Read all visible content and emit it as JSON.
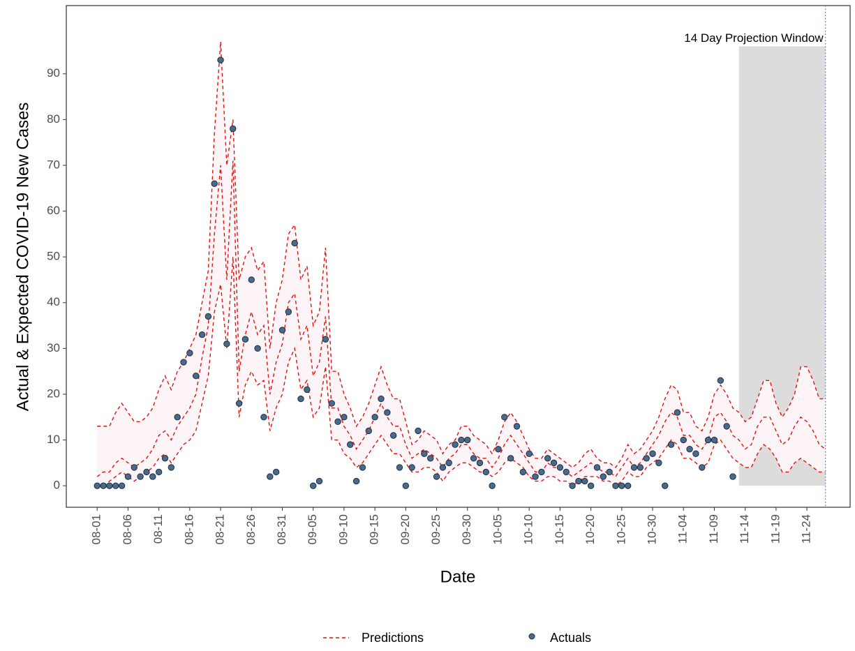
{
  "chart_data": {
    "type": "line",
    "x_label": "Date",
    "y_label": "Actual & Expected COVID-19 New Cases",
    "xlim": [
      "07-27",
      "12-01"
    ],
    "xticks": [
      "08-01",
      "08-06",
      "08-11",
      "08-16",
      "08-21",
      "08-26",
      "08-31",
      "09-05",
      "09-10",
      "09-15",
      "09-20",
      "09-25",
      "09-30",
      "10-05",
      "10-10",
      "10-15",
      "10-20",
      "10-25",
      "10-30",
      "11-04",
      "11-09",
      "11-14",
      "11-19",
      "11-24"
    ],
    "ylim": [
      -4.7,
      104.9
    ],
    "yticks": [
      0,
      10,
      20,
      30,
      40,
      50,
      60,
      70,
      80,
      90
    ],
    "projection_window": {
      "label": "14 Day Projection Window",
      "start": "11-13",
      "end": "11-27",
      "bottom": 0,
      "top": 96,
      "color": "#dcdcdc"
    },
    "vline": "11-27",
    "series": [
      {
        "name": "Predictions",
        "color": "#e3120b",
        "band_color": "#fcf4f7",
        "x": [
          "08-01",
          "08-02",
          "08-03",
          "08-04",
          "08-05",
          "08-06",
          "08-07",
          "08-08",
          "08-09",
          "08-10",
          "08-11",
          "08-12",
          "08-13",
          "08-14",
          "08-15",
          "08-16",
          "08-17",
          "08-18",
          "08-19",
          "08-20",
          "08-21",
          "08-22",
          "08-23",
          "08-24",
          "08-25",
          "08-26",
          "08-27",
          "08-28",
          "08-29",
          "08-30",
          "08-31",
          "09-01",
          "09-02",
          "09-03",
          "09-04",
          "09-05",
          "09-06",
          "09-07",
          "09-08",
          "09-09",
          "09-10",
          "09-11",
          "09-12",
          "09-13",
          "09-14",
          "09-15",
          "09-16",
          "09-17",
          "09-18",
          "09-19",
          "09-20",
          "09-21",
          "09-22",
          "09-23",
          "09-24",
          "09-25",
          "09-26",
          "09-27",
          "09-28",
          "09-29",
          "09-30",
          "10-01",
          "10-02",
          "10-03",
          "10-04",
          "10-05",
          "10-06",
          "10-07",
          "10-08",
          "10-09",
          "10-10",
          "10-11",
          "10-12",
          "10-13",
          "10-14",
          "10-15",
          "10-16",
          "10-17",
          "10-18",
          "10-19",
          "10-20",
          "10-21",
          "10-22",
          "10-23",
          "10-24",
          "10-25",
          "10-26",
          "10-27",
          "10-28",
          "10-29",
          "10-30",
          "10-31",
          "11-01",
          "11-02",
          "11-03",
          "11-04",
          "11-05",
          "11-06",
          "11-07",
          "11-08",
          "11-09",
          "11-10",
          "11-11",
          "11-12",
          "11-13",
          "11-14",
          "11-15",
          "11-16",
          "11-17",
          "11-18",
          "11-19",
          "11-20",
          "11-21",
          "11-22",
          "11-23",
          "11-24",
          "11-25",
          "11-26",
          "11-27"
        ],
        "upper": [
          13,
          13,
          13,
          16,
          18,
          16,
          14,
          14,
          15,
          17,
          21,
          24,
          21,
          25,
          27,
          30,
          33,
          40,
          47,
          77,
          97,
          70,
          80,
          45,
          50,
          52,
          47,
          49,
          30,
          40,
          45,
          55,
          57,
          45,
          48,
          35,
          38,
          52,
          25,
          25,
          20,
          17,
          13,
          15,
          18,
          22,
          26,
          22,
          19,
          19,
          14,
          9,
          10,
          12,
          11,
          10,
          7,
          9,
          10,
          13,
          13,
          11,
          10,
          9,
          7,
          10,
          14,
          16,
          14,
          11,
          8,
          6,
          6,
          8,
          7,
          6,
          5,
          4,
          5,
          7,
          8,
          6,
          5,
          5,
          4,
          6,
          9,
          7,
          8,
          10,
          12,
          15,
          19,
          22,
          21,
          16,
          16,
          13,
          12,
          15,
          20,
          22,
          20,
          17,
          16,
          14,
          15,
          19,
          23,
          23,
          18,
          15,
          17,
          20,
          26,
          26,
          23,
          19,
          19
        ],
        "values": [
          2,
          3,
          3,
          5,
          6,
          5,
          4,
          5,
          6,
          8,
          11,
          12,
          10,
          13,
          15,
          17,
          20,
          28,
          35,
          55,
          70,
          45,
          71,
          25,
          33,
          38,
          33,
          35,
          20,
          27,
          31,
          40,
          42,
          32,
          35,
          24,
          27,
          37,
          17,
          17,
          13,
          11,
          8,
          10,
          12,
          15,
          18,
          15,
          13,
          13,
          9,
          6,
          7,
          8,
          7,
          6,
          4,
          6,
          7,
          9,
          9,
          7,
          6,
          6,
          4,
          6,
          9,
          11,
          9,
          7,
          5,
          3,
          3,
          5,
          4,
          4,
          3,
          2,
          3,
          4,
          5,
          4,
          3,
          3,
          2,
          4,
          6,
          4,
          5,
          7,
          9,
          11,
          14,
          16,
          15,
          11,
          11,
          9,
          8,
          10,
          15,
          16,
          14,
          11,
          10,
          8,
          9,
          13,
          15,
          15,
          12,
          9,
          10,
          13,
          15,
          14,
          12,
          9,
          8
        ],
        "lower": [
          0,
          0,
          1,
          2,
          3,
          2,
          1,
          2,
          3,
          4,
          6,
          7,
          5,
          7,
          9,
          10,
          12,
          18,
          24,
          38,
          44,
          30,
          50,
          15,
          22,
          25,
          22,
          23,
          12,
          17,
          20,
          27,
          30,
          21,
          23,
          15,
          17,
          26,
          10,
          10,
          7,
          6,
          4,
          5,
          7,
          9,
          11,
          9,
          7,
          7,
          5,
          3,
          3,
          4,
          4,
          3,
          1,
          3,
          4,
          5,
          5,
          4,
          3,
          3,
          2,
          3,
          5,
          6,
          5,
          4,
          2,
          1,
          1,
          2,
          2,
          1,
          1,
          0,
          1,
          2,
          2,
          2,
          1,
          1,
          0,
          1,
          3,
          2,
          2,
          4,
          5,
          6,
          8,
          10,
          9,
          6,
          6,
          5,
          4,
          5,
          9,
          10,
          8,
          6,
          5,
          4,
          4,
          7,
          9,
          8,
          6,
          3,
          3,
          5,
          6,
          5,
          4,
          3,
          3
        ]
      },
      {
        "name": "Actuals",
        "color": "#4a6a8c",
        "x": [
          "08-01",
          "08-02",
          "08-03",
          "08-04",
          "08-05",
          "08-06",
          "08-07",
          "08-08",
          "08-09",
          "08-10",
          "08-11",
          "08-12",
          "08-13",
          "08-14",
          "08-15",
          "08-16",
          "08-17",
          "08-18",
          "08-19",
          "08-20",
          "08-21",
          "08-22",
          "08-23",
          "08-24",
          "08-25",
          "08-26",
          "08-27",
          "08-28",
          "08-29",
          "08-30",
          "08-31",
          "09-01",
          "09-02",
          "09-03",
          "09-04",
          "09-05",
          "09-06",
          "09-07",
          "09-08",
          "09-09",
          "09-10",
          "09-11",
          "09-12",
          "09-13",
          "09-14",
          "09-15",
          "09-16",
          "09-17",
          "09-18",
          "09-19",
          "09-20",
          "09-21",
          "09-22",
          "09-23",
          "09-24",
          "09-25",
          "09-26",
          "09-27",
          "09-28",
          "09-29",
          "09-30",
          "10-01",
          "10-02",
          "10-03",
          "10-04",
          "10-05",
          "10-06",
          "10-07",
          "10-08",
          "10-09",
          "10-10",
          "10-11",
          "10-12",
          "10-13",
          "10-14",
          "10-15",
          "10-16",
          "10-17",
          "10-18",
          "10-19",
          "10-20",
          "10-21",
          "10-22",
          "10-23",
          "10-24",
          "10-25",
          "10-26",
          "10-27",
          "10-28",
          "10-29",
          "10-30",
          "10-31",
          "11-01",
          "11-02",
          "11-03",
          "11-04",
          "11-05",
          "11-06",
          "11-07",
          "11-08",
          "11-09",
          "11-10",
          "11-11",
          "11-12"
        ],
        "values": [
          0,
          0,
          0,
          0,
          0,
          2,
          4,
          2,
          3,
          2,
          3,
          6,
          4,
          15,
          27,
          29,
          24,
          33,
          37,
          66,
          93,
          31,
          78,
          18,
          32,
          45,
          30,
          15,
          2,
          3,
          34,
          38,
          53,
          19,
          21,
          0,
          1,
          32,
          18,
          14,
          15,
          9,
          1,
          4,
          12,
          15,
          19,
          16,
          11,
          4,
          0,
          4,
          12,
          7,
          6,
          2,
          4,
          5,
          9,
          10,
          10,
          6,
          5,
          3,
          0,
          8,
          15,
          6,
          13,
          3,
          7,
          2,
          3,
          6,
          5,
          4,
          3,
          0,
          1,
          1,
          0,
          4,
          2,
          3,
          0,
          0,
          0,
          4,
          4,
          6,
          7,
          5,
          0,
          9,
          16,
          10,
          8,
          7,
          4,
          10,
          10,
          23,
          13,
          2
        ]
      }
    ]
  }
}
